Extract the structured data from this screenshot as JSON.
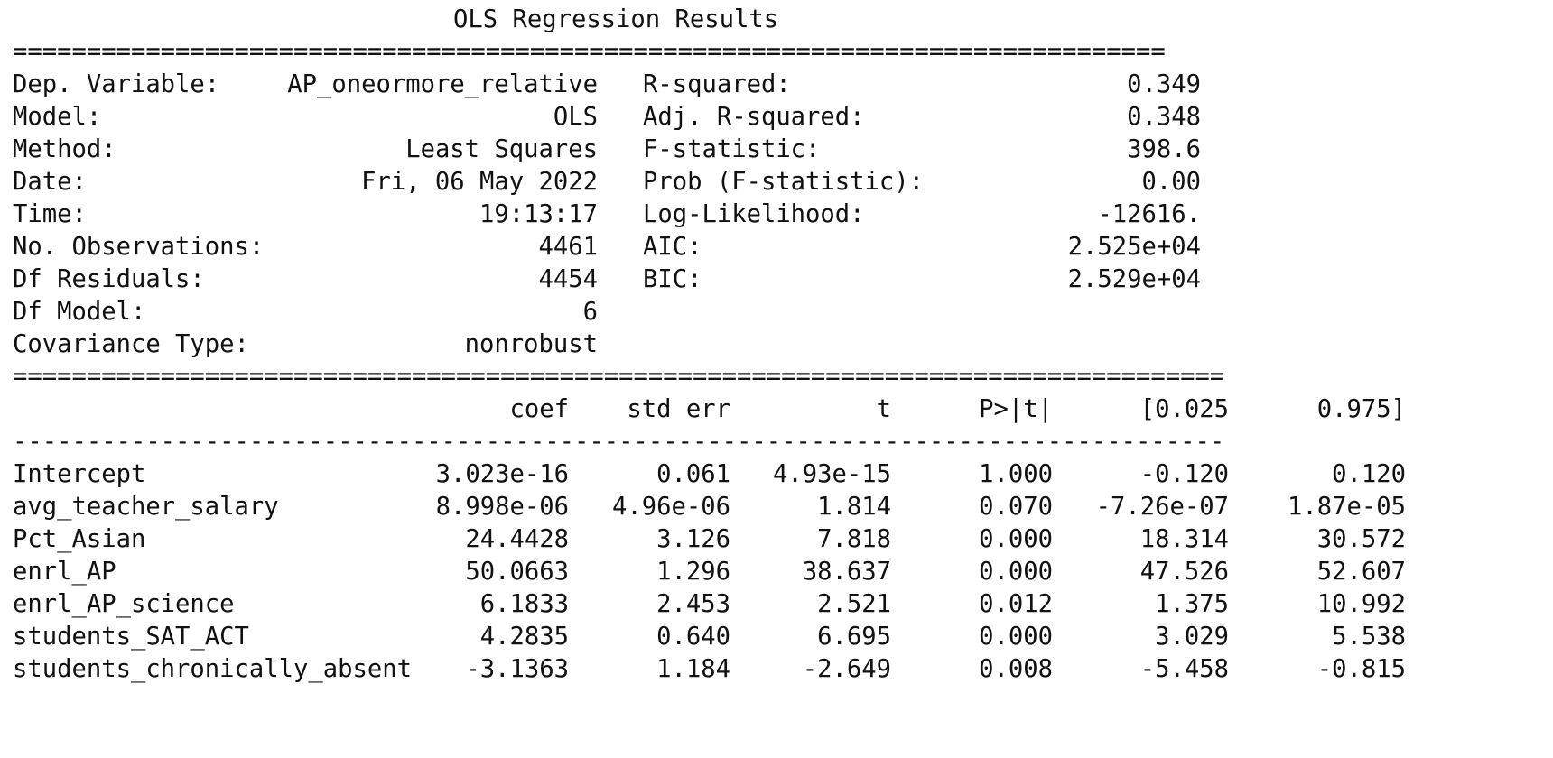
{
  "title": "OLS Regression Results",
  "rules": {
    "top": "==============================================================================",
    "middle": "==================================================================================",
    "dash": "----------------------------------------------------------------------------------"
  },
  "info": [
    {
      "label": "Dep. Variable:",
      "value": "AP_oneormore_relative",
      "stat": "R-squared:",
      "stat_value": "0.349"
    },
    {
      "label": "Model:",
      "value": "OLS",
      "stat": "Adj. R-squared:",
      "stat_value": "0.348"
    },
    {
      "label": "Method:",
      "value": "Least Squares",
      "stat": "F-statistic:",
      "stat_value": "398.6"
    },
    {
      "label": "Date:",
      "value": "Fri, 06 May 2022",
      "stat": "Prob (F-statistic):",
      "stat_value": "0.00"
    },
    {
      "label": "Time:",
      "value": "19:13:17",
      "stat": "Log-Likelihood:",
      "stat_value": "-12616."
    },
    {
      "label": "No. Observations:",
      "value": "4461",
      "stat": "AIC:",
      "stat_value": "2.525e+04"
    },
    {
      "label": "Df Residuals:",
      "value": "4454",
      "stat": "BIC:",
      "stat_value": "2.529e+04"
    },
    {
      "label": "Df Model:",
      "value": "6",
      "stat": "",
      "stat_value": ""
    },
    {
      "label": "Covariance Type:",
      "value": "nonrobust",
      "stat": "",
      "stat_value": ""
    }
  ],
  "coef_headers": [
    "coef",
    "std err",
    "t",
    "P>|t|",
    "[0.025",
    "0.975]"
  ],
  "coef_rows": [
    {
      "name": "Intercept",
      "values": [
        "3.023e-16",
        "0.061",
        "4.93e-15",
        "1.000",
        "-0.120",
        "0.120"
      ]
    },
    {
      "name": "avg_teacher_salary",
      "values": [
        "8.998e-06",
        "4.96e-06",
        "1.814",
        "0.070",
        "-7.26e-07",
        "1.87e-05"
      ]
    },
    {
      "name": "Pct_Asian",
      "values": [
        "24.4428",
        "3.126",
        "7.818",
        "0.000",
        "18.314",
        "30.572"
      ]
    },
    {
      "name": "enrl_AP",
      "values": [
        "50.0663",
        "1.296",
        "38.637",
        "0.000",
        "47.526",
        "52.607"
      ]
    },
    {
      "name": "enrl_AP_science",
      "values": [
        "6.1833",
        "2.453",
        "2.521",
        "0.012",
        "1.375",
        "10.992"
      ]
    },
    {
      "name": "students_SAT_ACT",
      "values": [
        "4.2835",
        "0.640",
        "6.695",
        "0.000",
        "3.029",
        "5.538"
      ]
    },
    {
      "name": "students_chronically_absent",
      "values": [
        "-3.1363",
        "1.184",
        "-2.649",
        "0.008",
        "-5.458",
        "-0.815"
      ]
    }
  ]
}
